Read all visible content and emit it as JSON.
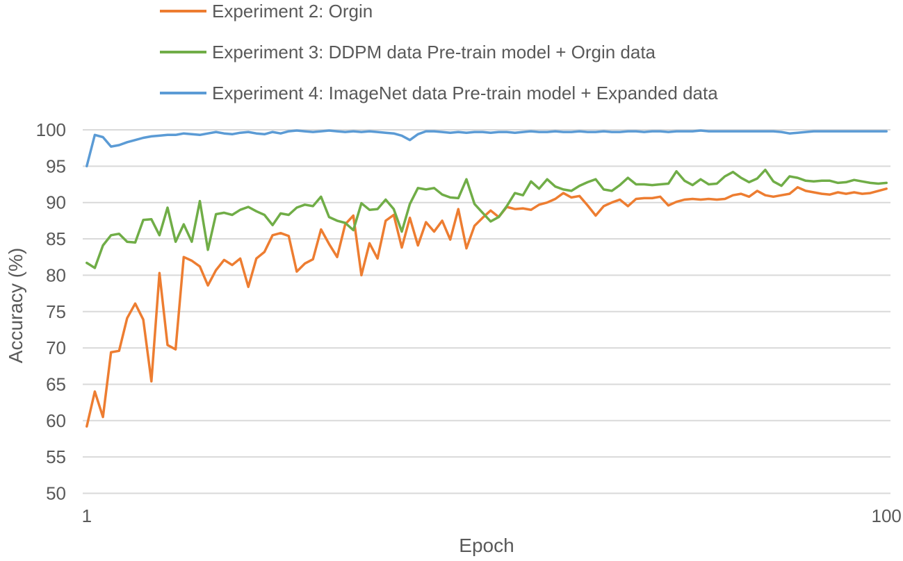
{
  "page": {
    "background": "#FFFFFF"
  },
  "chart_data": {
    "type": "line",
    "title": "",
    "xlabel": "Epoch",
    "ylabel": "Accuracy (%)",
    "x_range": [
      1,
      100
    ],
    "ylim": [
      50,
      100
    ],
    "yticks": [
      50,
      55,
      60,
      65,
      70,
      75,
      80,
      85,
      90,
      95,
      100
    ],
    "xticks": [
      "1",
      "100"
    ],
    "grid": "horizontal",
    "gridline_color": "#D9D9D9",
    "axis_text_color": "#595959",
    "legend_position": "top-left-vertical",
    "series": [
      {
        "name": "Experiment 2: Orgin",
        "color": "#ED7D31",
        "values": [
          59.2,
          64.0,
          60.5,
          69.4,
          69.6,
          74.1,
          76.1,
          73.9,
          65.4,
          80.3,
          70.4,
          69.8,
          82.5,
          82.0,
          81.2,
          78.6,
          80.7,
          82.1,
          81.4,
          82.3,
          78.4,
          82.3,
          83.2,
          85.5,
          85.8,
          85.4,
          80.5,
          81.6,
          82.2,
          86.3,
          84.3,
          82.5,
          87.0,
          88.2,
          80.0,
          84.4,
          82.3,
          87.5,
          88.3,
          83.8,
          87.9,
          84.1,
          87.3,
          86.0,
          87.5,
          84.9,
          89.1,
          83.7,
          86.8,
          87.9,
          88.9,
          88.0,
          89.4,
          89.1,
          89.2,
          89.0,
          89.7,
          90.0,
          90.5,
          91.3,
          90.7,
          90.9,
          89.6,
          88.2,
          89.5,
          90.0,
          90.4,
          89.5,
          90.5,
          90.6,
          90.6,
          90.8,
          89.6,
          90.1,
          90.4,
          90.5,
          90.4,
          90.5,
          90.4,
          90.5,
          91.0,
          91.2,
          90.8,
          91.6,
          91.0,
          90.8,
          91.0,
          91.2,
          92.1,
          91.6,
          91.4,
          91.2,
          91.1,
          91.4,
          91.2,
          91.4,
          91.2,
          91.3,
          91.6,
          91.9
        ]
      },
      {
        "name": "Experiment 3: DDPM data Pre-train model + Orgin data",
        "color": "#70AD47",
        "values": [
          81.7,
          81.0,
          84.1,
          85.5,
          85.7,
          84.6,
          84.5,
          87.6,
          87.7,
          85.5,
          89.3,
          84.6,
          87.0,
          84.6,
          90.2,
          83.5,
          88.4,
          88.6,
          88.3,
          89.0,
          89.4,
          88.8,
          88.3,
          86.9,
          88.5,
          88.3,
          89.3,
          89.7,
          89.5,
          90.8,
          88.0,
          87.5,
          87.2,
          86.2,
          89.9,
          89.0,
          89.1,
          90.4,
          89.1,
          86.0,
          89.8,
          92.0,
          91.8,
          92.0,
          91.1,
          90.7,
          90.6,
          93.2,
          89.8,
          88.6,
          87.4,
          88.0,
          89.5,
          91.3,
          91.0,
          92.9,
          91.9,
          93.2,
          92.2,
          91.8,
          91.6,
          92.3,
          92.8,
          93.2,
          91.8,
          91.6,
          92.4,
          93.4,
          92.5,
          92.5,
          92.4,
          92.5,
          92.6,
          94.3,
          93.0,
          92.4,
          93.2,
          92.5,
          92.6,
          93.6,
          94.2,
          93.4,
          92.8,
          93.3,
          94.5,
          92.9,
          92.3,
          93.6,
          93.4,
          93.0,
          92.9,
          93.0,
          93.0,
          92.7,
          92.8,
          93.1,
          92.9,
          92.7,
          92.6,
          92.7
        ]
      },
      {
        "name": "Experiment 4: ImageNet data Pre-train model + Expanded data",
        "color": "#5B9BD5",
        "values": [
          95.0,
          99.3,
          99.0,
          97.7,
          97.9,
          98.3,
          98.6,
          98.9,
          99.1,
          99.2,
          99.3,
          99.3,
          99.5,
          99.4,
          99.3,
          99.5,
          99.7,
          99.5,
          99.4,
          99.6,
          99.7,
          99.5,
          99.4,
          99.7,
          99.5,
          99.8,
          99.9,
          99.8,
          99.7,
          99.8,
          99.9,
          99.8,
          99.7,
          99.8,
          99.7,
          99.8,
          99.7,
          99.6,
          99.5,
          99.2,
          98.6,
          99.4,
          99.8,
          99.8,
          99.7,
          99.6,
          99.7,
          99.6,
          99.7,
          99.7,
          99.6,
          99.7,
          99.7,
          99.6,
          99.7,
          99.8,
          99.7,
          99.7,
          99.8,
          99.7,
          99.7,
          99.8,
          99.7,
          99.7,
          99.8,
          99.7,
          99.7,
          99.8,
          99.8,
          99.7,
          99.8,
          99.8,
          99.7,
          99.8,
          99.8,
          99.8,
          99.9,
          99.8,
          99.8,
          99.8,
          99.8,
          99.8,
          99.8,
          99.8,
          99.8,
          99.8,
          99.7,
          99.5,
          99.6,
          99.7,
          99.8,
          99.8,
          99.8,
          99.8,
          99.8,
          99.8,
          99.8,
          99.8,
          99.8,
          99.8
        ]
      }
    ]
  }
}
